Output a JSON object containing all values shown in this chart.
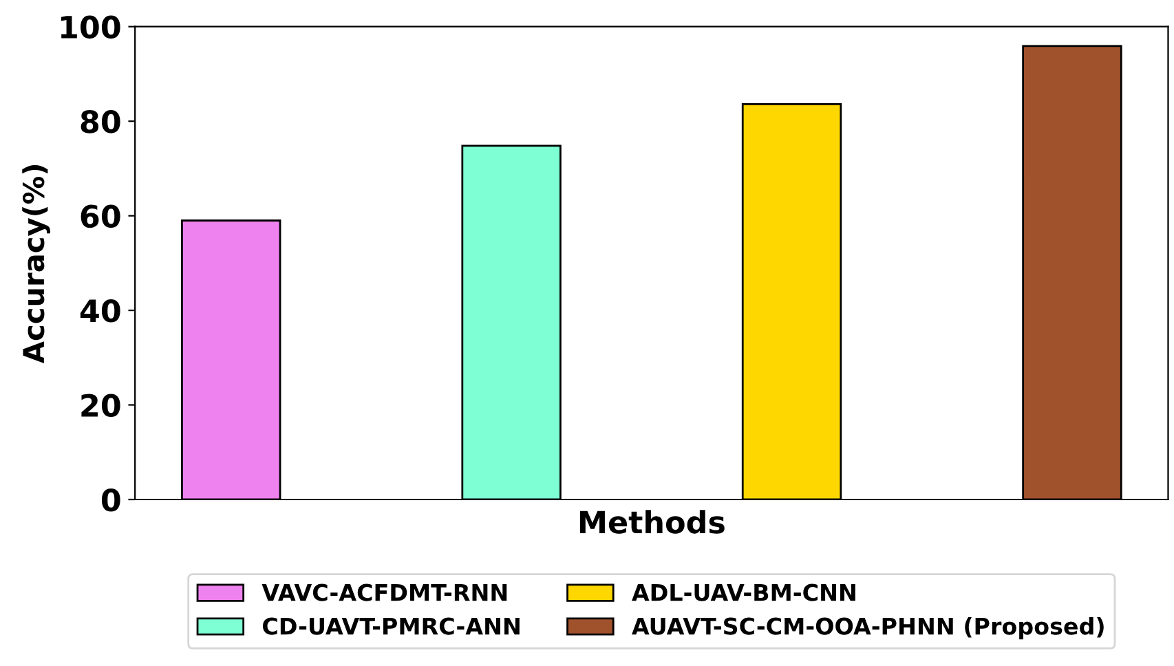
{
  "chart_data": {
    "type": "bar",
    "xlabel": "Methods",
    "ylabel": "Accuracy(%)",
    "categories": [
      null,
      null,
      null,
      null
    ],
    "series": [
      {
        "name": "VAVC-ACFDMT-RNN",
        "color": "#ee82ee",
        "values": [
          59.0,
          null,
          null,
          null
        ]
      },
      {
        "name": "CD-UAVT-PMRC-ANN",
        "color": "#7fffd4",
        "values": [
          null,
          74.8,
          null,
          null
        ]
      },
      {
        "name": "ADL-UAV-BM-CNN",
        "color": "#ffd700",
        "values": [
          null,
          null,
          83.6,
          null
        ]
      },
      {
        "name": "AUAVT-SC-CM-OOA-PHNN (Proposed)",
        "color": "#a0522d",
        "values": [
          null,
          null,
          null,
          95.9
        ]
      }
    ],
    "ylim": [
      0,
      100
    ],
    "yticks": [
      0,
      20,
      40,
      60,
      80,
      100
    ],
    "grid": false,
    "legend": "bottom"
  }
}
